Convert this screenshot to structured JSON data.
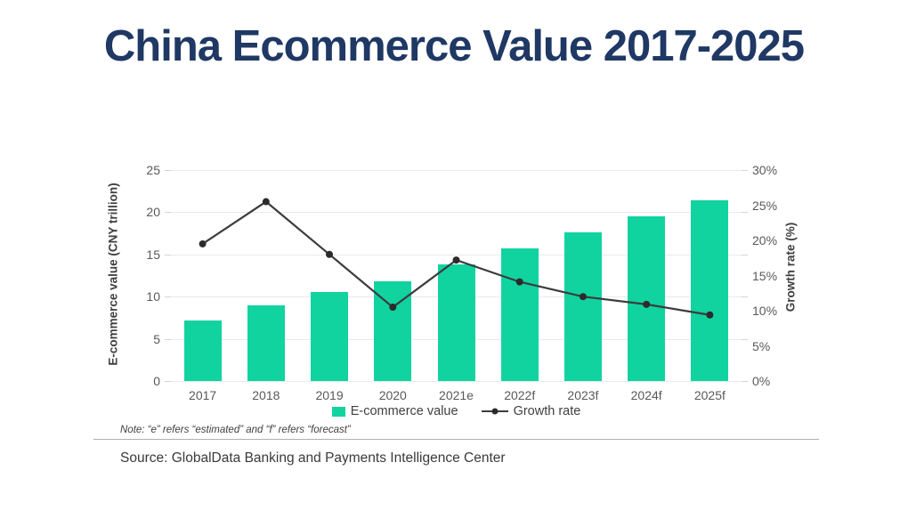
{
  "title": "China Ecommerce Value 2017-2025",
  "chart_data": {
    "type": "bar",
    "subtype": "combo bar+line, dual axis",
    "categories": [
      "2017",
      "2018",
      "2019",
      "2020",
      "2021e",
      "2022f",
      "2023f",
      "2024f",
      "2025f"
    ],
    "series": [
      {
        "name": "E-commerce value",
        "type": "bar",
        "axis": "left",
        "color": "#11d3a0",
        "values": [
          7.2,
          9.0,
          10.6,
          11.8,
          13.8,
          15.7,
          17.6,
          19.5,
          21.4
        ]
      },
      {
        "name": "Growth rate",
        "type": "line",
        "axis": "right",
        "color": "#3c3c3c",
        "marker_color": "#2b2b2b",
        "values": [
          19.5,
          25.5,
          18.0,
          10.5,
          17.2,
          14.1,
          12.0,
          10.9,
          9.4
        ]
      }
    ],
    "left_axis": {
      "label": "E-commerce value (CNY trillion)",
      "min": 0,
      "max": 25,
      "ticks": [
        0,
        5,
        10,
        15,
        20,
        25
      ]
    },
    "right_axis": {
      "label": "Growth rate (%)",
      "min": 0,
      "max": 30,
      "ticks": [
        0,
        5,
        10,
        15,
        20,
        25,
        30
      ],
      "tick_suffix": "%"
    },
    "grid": true,
    "legend_position": "bottom"
  },
  "note": "Note: “e” refers “estimated” and “f” refers “forecast”",
  "source": "Source: GlobalData Banking and Payments Intelligence Center",
  "colors": {
    "title": "#1f3864",
    "bar": "#11d3a0",
    "line": "#3c3c3c",
    "axis_text": "#595959",
    "gridline": "#eaeaea",
    "separator": "#b0b0b0"
  }
}
